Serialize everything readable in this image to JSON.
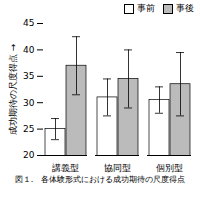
{
  "chart_data": {
    "type": "bar",
    "categories": [
      "講義型",
      "協同型",
      "個別型"
    ],
    "series": [
      {
        "name": "事前",
        "color": "#ffffff",
        "values": [
          25.0,
          31.0,
          30.5
        ],
        "errors": [
          2.0,
          3.5,
          2.5
        ]
      },
      {
        "name": "事後",
        "color": "#bbbbbb",
        "values": [
          37.0,
          34.5,
          33.5
        ],
        "errors": [
          5.5,
          5.5,
          6.0
        ]
      }
    ],
    "ylabel": "成功期待の尺度得点",
    "caption": "図１.　各体験形式における成功期待の尺度得点",
    "ylim": [
      20,
      45
    ],
    "yticks": [
      20,
      25,
      30,
      35,
      40,
      45
    ],
    "legend": "upper right",
    "grid": false
  }
}
